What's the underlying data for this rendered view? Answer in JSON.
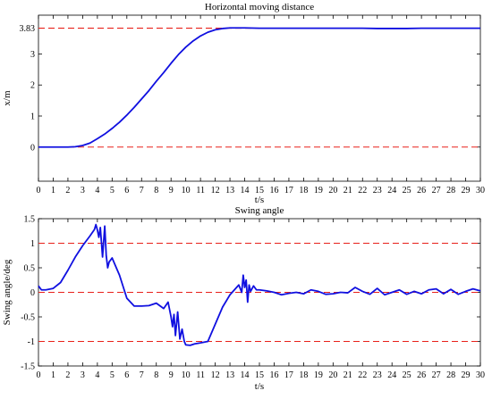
{
  "chart_data": [
    {
      "type": "line",
      "title": "Horizontal moving distance",
      "xlabel": "t/s",
      "ylabel": "x/m",
      "xlim": [
        0,
        30
      ],
      "ylim": [
        -1.1,
        4.25
      ],
      "xticks": [
        0,
        1,
        2,
        3,
        4,
        5,
        6,
        7,
        8,
        9,
        10,
        11,
        12,
        13,
        14,
        15,
        16,
        17,
        18,
        19,
        20,
        21,
        22,
        23,
        24,
        25,
        26,
        27,
        28,
        29,
        30
      ],
      "yticks": [
        0,
        1,
        2,
        3
      ],
      "ytick_labels": [
        "0",
        "1",
        "2",
        "3"
      ],
      "extra_ytick": {
        "value": 3.83,
        "label": "3.83"
      },
      "reference_lines": [
        {
          "y": 3.83,
          "style": "dashed",
          "color": "#e8201a"
        },
        {
          "y": 0,
          "style": "dashed",
          "color": "#e8201a"
        }
      ],
      "grid": false,
      "series": [
        {
          "color": "#1010e0",
          "x": [
            0,
            0.5,
            1,
            1.5,
            2,
            2.5,
            3,
            3.5,
            4,
            4.5,
            5,
            5.5,
            6,
            6.5,
            7,
            7.5,
            8,
            8.5,
            9,
            9.5,
            10,
            10.5,
            11,
            11.5,
            12,
            12.5,
            13,
            13.5,
            14,
            15,
            16,
            17,
            18,
            19,
            20,
            21,
            22,
            23,
            24,
            25,
            26,
            27,
            28,
            29,
            30
          ],
          "y": [
            0,
            0,
            0,
            0,
            0,
            0.01,
            0.05,
            0.13,
            0.27,
            0.42,
            0.6,
            0.8,
            1.03,
            1.28,
            1.55,
            1.82,
            2.12,
            2.4,
            2.7,
            2.98,
            3.22,
            3.42,
            3.58,
            3.7,
            3.78,
            3.82,
            3.84,
            3.84,
            3.84,
            3.83,
            3.83,
            3.83,
            3.83,
            3.83,
            3.83,
            3.83,
            3.83,
            3.82,
            3.82,
            3.82,
            3.83,
            3.83,
            3.83,
            3.83,
            3.83
          ]
        }
      ]
    },
    {
      "type": "line",
      "title": "Swing angle",
      "xlabel": "t/s",
      "ylabel": "Swing angle/deg",
      "xlim": [
        0,
        30
      ],
      "ylim": [
        -1.5,
        1.5
      ],
      "xticks": [
        0,
        1,
        2,
        3,
        4,
        5,
        6,
        7,
        8,
        9,
        10,
        11,
        12,
        13,
        14,
        15,
        16,
        17,
        18,
        19,
        20,
        21,
        22,
        23,
        24,
        25,
        26,
        27,
        28,
        29,
        30
      ],
      "yticks": [
        -1.5,
        -1,
        -0.5,
        0,
        0.5,
        1,
        1.5
      ],
      "ytick_labels": [
        "-1.5",
        "-1",
        "-0.5",
        "0",
        "0.5",
        "1",
        "1.5"
      ],
      "reference_lines": [
        {
          "y": 1,
          "style": "dashed",
          "color": "#e8201a"
        },
        {
          "y": 0,
          "style": "dashed",
          "color": "#e8201a"
        },
        {
          "y": -1,
          "style": "dashed",
          "color": "#e8201a"
        }
      ],
      "grid": false,
      "series": [
        {
          "color": "#1010e0",
          "x": [
            0,
            0.2,
            0.5,
            1,
            1.5,
            2,
            2.5,
            3,
            3.5,
            3.8,
            3.9,
            4,
            4.1,
            4.2,
            4.35,
            4.5,
            4.6,
            4.7,
            4.8,
            5,
            5.5,
            6,
            6.5,
            7,
            7.5,
            8,
            8.5,
            8.8,
            9,
            9.1,
            9.2,
            9.3,
            9.45,
            9.6,
            9.75,
            9.9,
            10,
            10.3,
            10.6,
            11,
            11.5,
            12,
            12.5,
            13,
            13.3,
            13.6,
            13.8,
            13.9,
            14,
            14.1,
            14.2,
            14.3,
            14.4,
            14.6,
            14.8,
            15,
            15.5,
            16,
            16.5,
            17,
            17.5,
            18,
            18.5,
            19,
            19.5,
            20,
            20.5,
            21,
            21.5,
            22,
            22.5,
            23,
            23.5,
            24,
            24.5,
            25,
            25.5,
            26,
            26.5,
            27,
            27.5,
            28,
            28.5,
            29,
            29.5,
            30
          ],
          "y": [
            0.13,
            0.05,
            0.05,
            0.08,
            0.2,
            0.45,
            0.72,
            0.95,
            1.15,
            1.28,
            1.38,
            1.27,
            1.12,
            1.32,
            0.72,
            1.35,
            0.75,
            0.5,
            0.62,
            0.7,
            0.35,
            -0.12,
            -0.28,
            -0.28,
            -0.27,
            -0.22,
            -0.33,
            -0.2,
            -0.5,
            -0.7,
            -0.45,
            -0.88,
            -0.4,
            -0.95,
            -0.75,
            -1.0,
            -1.07,
            -1.08,
            -1.05,
            -1.03,
            -1.0,
            -0.65,
            -0.3,
            -0.05,
            0.05,
            0.15,
            0.0,
            0.35,
            0.1,
            0.25,
            -0.2,
            0.15,
            0.02,
            0.13,
            0.05,
            0.05,
            0.03,
            0.0,
            -0.05,
            -0.02,
            0.0,
            -0.03,
            0.05,
            0.02,
            -0.04,
            -0.03,
            0.0,
            -0.01,
            0.1,
            0.02,
            -0.04,
            0.08,
            -0.05,
            0.0,
            0.05,
            -0.04,
            0.02,
            -0.03,
            0.05,
            0.07,
            -0.03,
            0.06,
            -0.04,
            0.02,
            0.07,
            0.03
          ]
        }
      ]
    }
  ]
}
